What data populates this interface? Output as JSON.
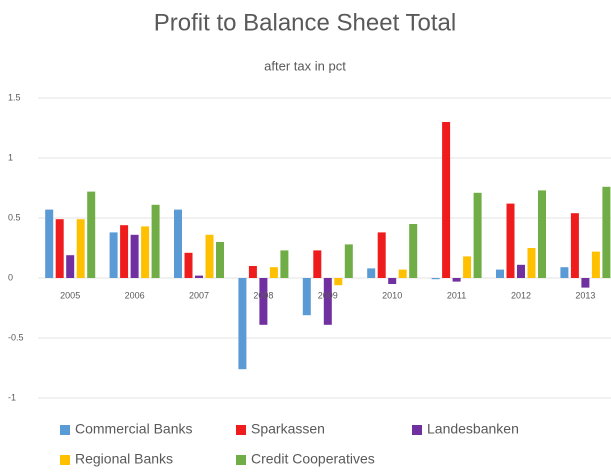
{
  "chart_data": {
    "type": "bar",
    "title": "Profit to Balance Sheet Total",
    "subtitle": "after tax in pct",
    "categories": [
      "2005",
      "2006",
      "2007",
      "2008",
      "2009",
      "2010",
      "2011",
      "2012",
      "2013"
    ],
    "series": [
      {
        "name": "Commercial Banks",
        "color": "#5b9bd5",
        "values": [
          0.57,
          0.38,
          0.57,
          -0.76,
          -0.31,
          0.08,
          -0.01,
          0.07,
          0.09
        ]
      },
      {
        "name": "Sparkassen",
        "color": "#ee1c1c",
        "values": [
          0.49,
          0.44,
          0.21,
          0.1,
          0.23,
          0.38,
          1.3,
          0.62,
          0.54
        ]
      },
      {
        "name": "Landesbanken",
        "color": "#7030a0",
        "values": [
          0.19,
          0.36,
          0.02,
          -0.39,
          -0.39,
          -0.05,
          -0.03,
          0.11,
          -0.08
        ]
      },
      {
        "name": "Regional Banks",
        "color": "#ffc000",
        "values": [
          0.49,
          0.43,
          0.36,
          0.09,
          -0.06,
          0.07,
          0.18,
          0.25,
          0.22
        ]
      },
      {
        "name": "Credit Cooperatives",
        "color": "#70ad47",
        "values": [
          0.72,
          0.61,
          0.3,
          0.23,
          0.28,
          0.45,
          0.71,
          0.73,
          0.76
        ]
      }
    ],
    "ylim": [
      -1,
      1.5
    ],
    "yticks": [
      -1,
      -0.5,
      0,
      0.5,
      1,
      1.5
    ],
    "grid": true,
    "legend": "bottom"
  }
}
